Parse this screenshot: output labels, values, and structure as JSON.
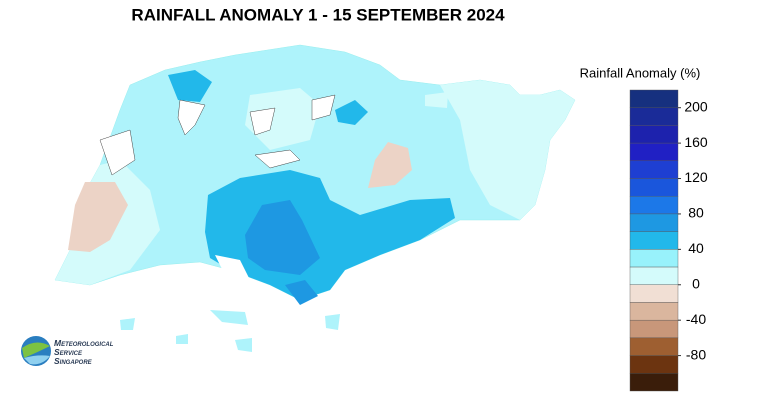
{
  "title": "RAINFALL ANOMALY 1 - 15 SEPTEMBER 2024",
  "legend": {
    "title": "Rainfall Anomaly (%)",
    "lim": [
      -120,
      220
    ],
    "bounds": [
      220,
      200,
      180,
      160,
      140,
      120,
      100,
      80,
      60,
      40,
      20,
      0,
      -20,
      -40,
      -60,
      -80,
      -100,
      -120
    ],
    "colors": [
      "#16307f",
      "#1a2b98",
      "#1d22ad",
      "#2020c4",
      "#1e3fd2",
      "#1a56dc",
      "#1c78e8",
      "#1e98e2",
      "#22b8ea",
      "#98f2fb",
      "#d4fbfb",
      "#f1dfd4",
      "#dab69e",
      "#c8977a",
      "#9e5f31",
      "#6c3410",
      "#3a1d0a"
    ],
    "ticks": [
      200,
      160,
      120,
      80,
      40,
      0,
      -40,
      -80
    ]
  },
  "logo": {
    "lines": [
      "Meteorological",
      "Service",
      "Singapore"
    ]
  }
}
